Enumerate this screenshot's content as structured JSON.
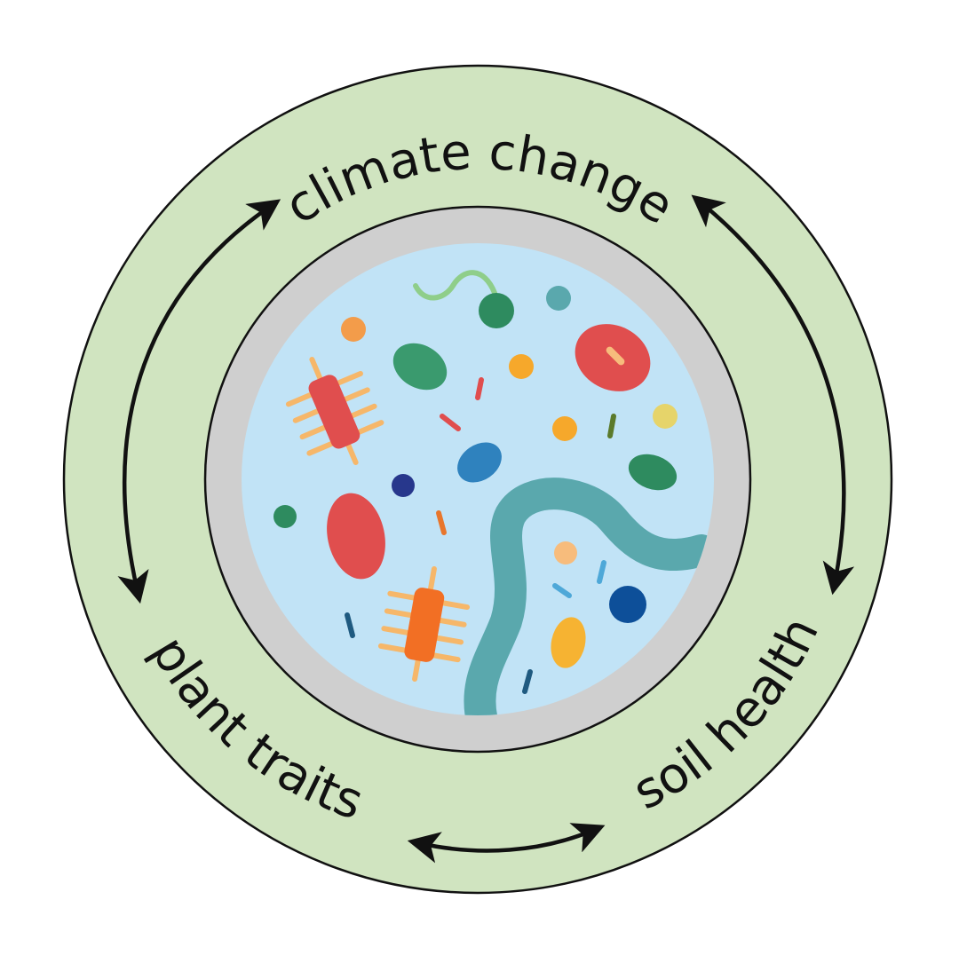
{
  "diagram": {
    "labels": {
      "top": "climate change",
      "bottom_left": "plant traits",
      "bottom_right": "soil health"
    },
    "colors": {
      "outer_ring": "#d0e4c0",
      "petri_rim": "#cfcfcf",
      "petri_medium": "#c1e3f6",
      "outline": "#111111"
    },
    "icons": {
      "center": "petri-dish-microbes-icon"
    },
    "connections": [
      {
        "between": [
          "climate change",
          "plant traits"
        ],
        "direction": "both"
      },
      {
        "between": [
          "climate change",
          "soil health"
        ],
        "direction": "both"
      },
      {
        "between": [
          "plant traits",
          "soil health"
        ],
        "direction": "both"
      }
    ]
  }
}
